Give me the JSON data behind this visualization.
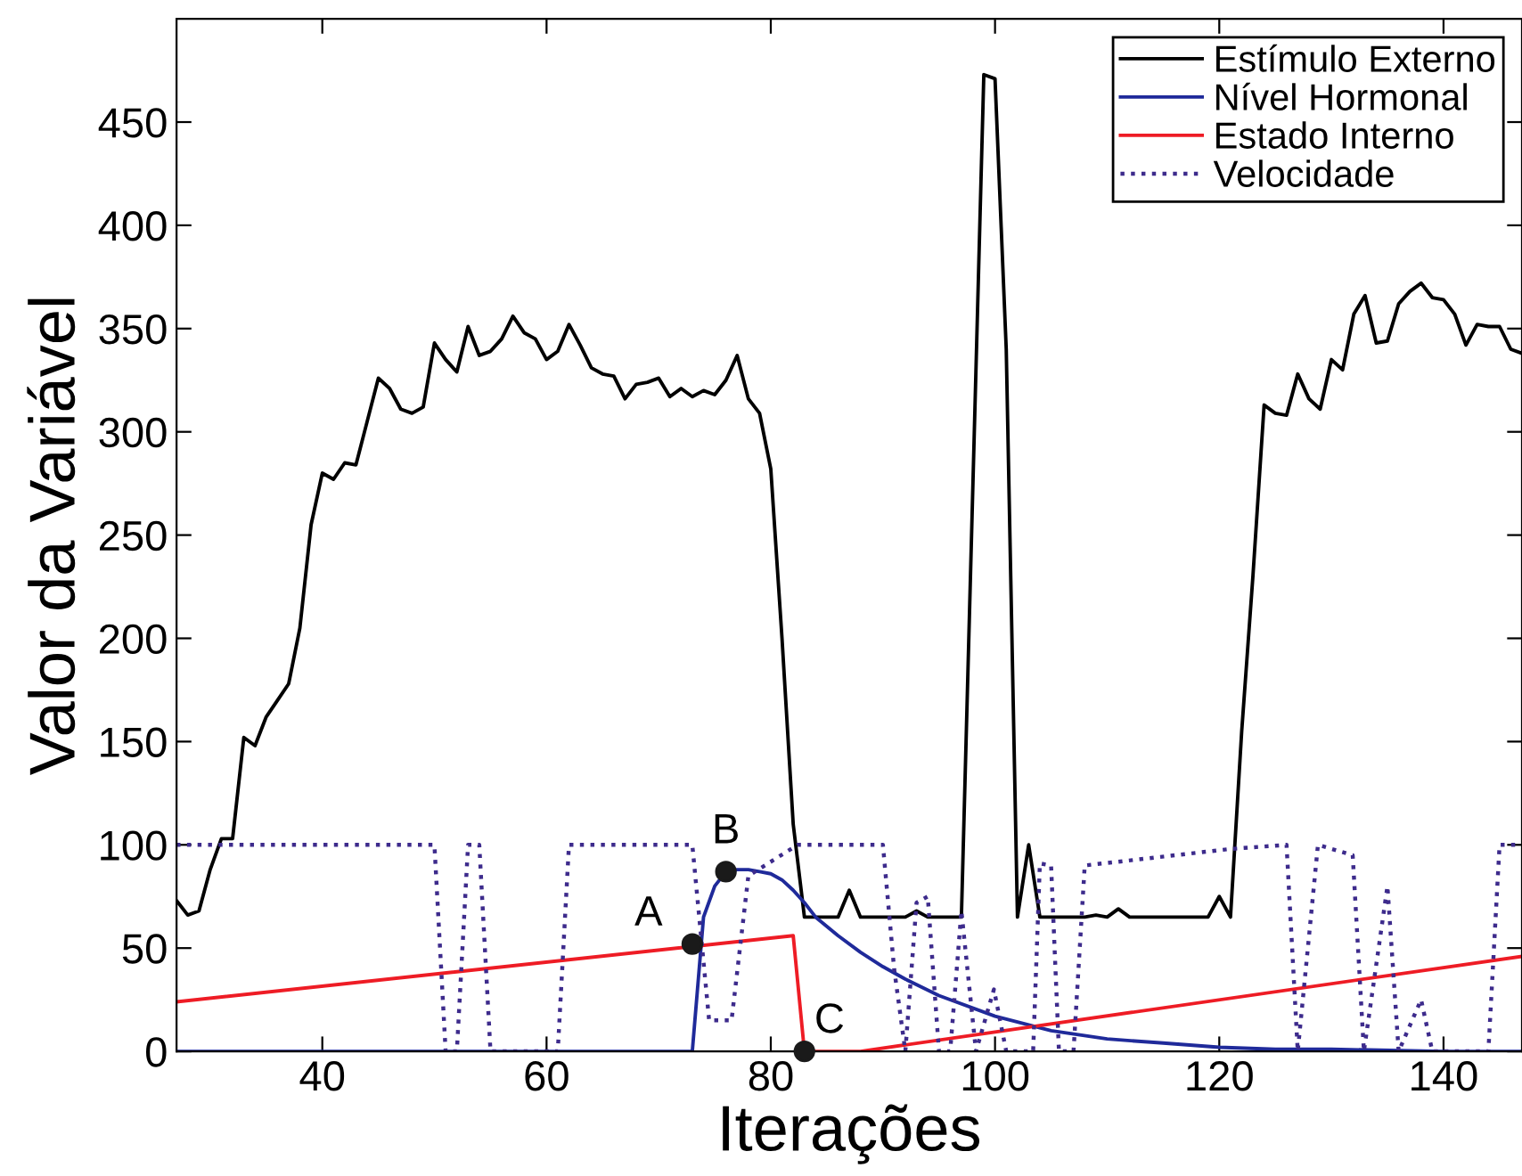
{
  "chart_data": {
    "type": "line",
    "xlabel": "Iterações",
    "ylabel": "Valor da Variável",
    "xlim": [
      27,
      147
    ],
    "ylim": [
      0,
      500
    ],
    "xticks": [
      40,
      60,
      80,
      100,
      120,
      140
    ],
    "yticks": [
      0,
      50,
      100,
      150,
      200,
      250,
      300,
      350,
      400,
      450
    ],
    "grid": false,
    "legend": "top right",
    "line_style": "solid",
    "marker": "none",
    "series": [
      {
        "name": "Estímulo Externo",
        "color": "#000000",
        "x": [
          27,
          28,
          29,
          30,
          31,
          32,
          33,
          34,
          35,
          36,
          37,
          38,
          39,
          40,
          41,
          42,
          43,
          44,
          45,
          46,
          47,
          48,
          49,
          50,
          51,
          52,
          53,
          54,
          55,
          56,
          57,
          58,
          59,
          60,
          61,
          62,
          63,
          64,
          65,
          66,
          67,
          68,
          69,
          70,
          71,
          72,
          73,
          74,
          75,
          76,
          77,
          78,
          79,
          80,
          81,
          82,
          83,
          84,
          85,
          86,
          87,
          88,
          89,
          90,
          91,
          92,
          93,
          94,
          95,
          96,
          97,
          99,
          100,
          101,
          102,
          103,
          104,
          105,
          106,
          107,
          108,
          109,
          110,
          111,
          112,
          113,
          114,
          115,
          116,
          117,
          118,
          119,
          120,
          121,
          122,
          123,
          124,
          125,
          126,
          127,
          128,
          129,
          130,
          131,
          132,
          133,
          134,
          135,
          136,
          137,
          138,
          139,
          140,
          141,
          142,
          143,
          144,
          145,
          146,
          147
        ],
        "values": [
          73,
          66,
          68,
          88,
          103,
          103,
          152,
          148,
          162,
          170,
          178,
          205,
          255,
          280,
          277,
          285,
          284,
          305,
          326,
          321,
          311,
          309,
          312,
          343,
          335,
          329,
          351,
          337,
          339,
          345,
          356,
          348,
          345,
          335,
          339,
          352,
          342,
          331,
          328,
          327,
          316,
          323,
          324,
          326,
          317,
          321,
          317,
          320,
          318,
          325,
          337,
          316,
          309,
          282,
          200,
          110,
          65,
          65,
          65,
          65,
          78,
          65,
          65,
          65,
          65,
          65,
          68,
          65,
          65,
          65,
          65,
          473,
          471,
          340,
          65,
          100,
          65,
          65,
          65,
          65,
          65,
          66,
          65,
          69,
          65,
          65,
          65,
          65,
          65,
          65,
          65,
          65,
          75,
          65,
          155,
          230,
          313,
          309,
          308,
          328,
          316,
          311,
          335,
          330,
          357,
          366,
          343,
          344,
          362,
          368,
          372,
          365,
          364,
          357,
          342,
          352,
          351,
          351,
          340,
          338
        ]
      },
      {
        "name": "Nível Hormonal",
        "color": "#1f2a9a",
        "x": [
          27,
          73,
          74,
          75,
          76,
          77,
          78,
          79,
          80,
          81,
          82,
          83,
          84,
          86,
          88,
          90,
          92,
          95,
          100,
          105,
          110,
          115,
          120,
          125,
          130,
          140,
          147
        ],
        "values": [
          0,
          0,
          65,
          80,
          87,
          88,
          88,
          87,
          86,
          83,
          78,
          72,
          65,
          56,
          48,
          41,
          35,
          27,
          17,
          10,
          6,
          4,
          2,
          1,
          1,
          0,
          0
        ]
      },
      {
        "name": "Estado Interno",
        "color": "#ee1c25",
        "x": [
          27,
          82,
          83,
          88,
          147
        ],
        "values": [
          24,
          56,
          0,
          0,
          46
        ]
      },
      {
        "name": "Velocidade",
        "color": "#3d2b8c",
        "line_style": "dotted",
        "x": [
          27,
          50,
          51,
          52,
          53,
          54,
          55,
          61,
          62,
          73,
          74.5,
          76.5,
          78,
          82.4,
          90,
          91,
          92,
          93,
          94,
          95,
          96,
          97,
          98.3,
          99.9,
          101,
          103.4,
          104,
          105,
          105.7,
          107,
          108,
          121,
          126,
          127,
          128.8,
          131.9,
          132.9,
          135,
          136,
          138,
          139,
          144,
          145,
          147
        ],
        "values": [
          100,
          100,
          0,
          0,
          100,
          100,
          0,
          0,
          100,
          100,
          15,
          15,
          85,
          100,
          100,
          40,
          0,
          72,
          75,
          0,
          0,
          68,
          0,
          30,
          0,
          0,
          91,
          90,
          0,
          0,
          90,
          98,
          100,
          0,
          100,
          95,
          0,
          80,
          0,
          25,
          0,
          0,
          100,
          100
        ]
      },
      {
        "type": "scatter",
        "color": "#1a1a1a",
        "marker": "circle",
        "x": [
          73,
          76,
          83
        ],
        "values": [
          52,
          87,
          0
        ]
      }
    ],
    "annotations": [
      {
        "text": "A",
        "x": 73,
        "y": 52
      },
      {
        "text": "B",
        "x": 76,
        "y": 87
      },
      {
        "text": "C",
        "x": 83,
        "y": 0
      }
    ]
  }
}
